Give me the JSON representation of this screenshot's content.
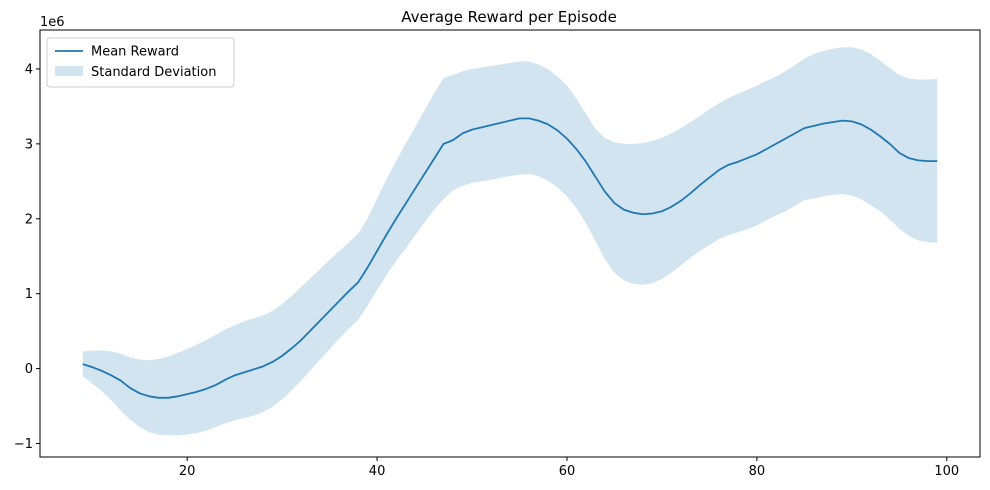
{
  "chart_data": {
    "type": "line",
    "title": "Average Reward per Episode",
    "xlabel": "",
    "ylabel": "",
    "y_offset_text": "1e6",
    "xlim": [
      4.5,
      103.5
    ],
    "ylim": [
      -1.18,
      4.52
    ],
    "x_ticks": [
      20,
      40,
      60,
      80,
      100
    ],
    "y_ticks": [
      -1,
      0,
      1,
      2,
      3,
      4
    ],
    "legend_position": "top-left",
    "grid": false,
    "colors": {
      "line": "#1f77b4",
      "band": "#1f77b4"
    },
    "series": [
      {
        "name": "Mean Reward",
        "kind": "line",
        "x": [
          9,
          10,
          11,
          12,
          13,
          14,
          15,
          16,
          17,
          18,
          19,
          20,
          21,
          22,
          23,
          24,
          25,
          26,
          27,
          28,
          29,
          30,
          31,
          32,
          33,
          34,
          35,
          36,
          37,
          38,
          39,
          40,
          41,
          42,
          43,
          44,
          45,
          46,
          47,
          48,
          49,
          50,
          51,
          52,
          53,
          54,
          55,
          56,
          57,
          58,
          59,
          60,
          61,
          62,
          63,
          64,
          65,
          66,
          67,
          68,
          69,
          70,
          71,
          72,
          73,
          74,
          75,
          76,
          77,
          78,
          79,
          80,
          81,
          82,
          83,
          84,
          85,
          86,
          87,
          88,
          89,
          90,
          91,
          92,
          93,
          94,
          95,
          96,
          97,
          98,
          99
        ],
        "y": [
          0.06,
          0.02,
          -0.03,
          -0.09,
          -0.16,
          -0.26,
          -0.33,
          -0.37,
          -0.39,
          -0.39,
          -0.37,
          -0.34,
          -0.31,
          -0.27,
          -0.22,
          -0.15,
          -0.09,
          -0.05,
          -0.01,
          0.03,
          0.09,
          0.17,
          0.27,
          0.38,
          0.51,
          0.64,
          0.77,
          0.9,
          1.03,
          1.15,
          1.35,
          1.57,
          1.79,
          2.0,
          2.2,
          2.4,
          2.6,
          2.8,
          3.0,
          3.05,
          3.14,
          3.19,
          3.22,
          3.25,
          3.28,
          3.31,
          3.34,
          3.34,
          3.31,
          3.26,
          3.18,
          3.07,
          2.93,
          2.76,
          2.56,
          2.36,
          2.21,
          2.12,
          2.08,
          2.06,
          2.07,
          2.1,
          2.16,
          2.24,
          2.34,
          2.45,
          2.55,
          2.65,
          2.72,
          2.76,
          2.81,
          2.86,
          2.93,
          3.0,
          3.07,
          3.14,
          3.21,
          3.24,
          3.27,
          3.29,
          3.31,
          3.3,
          3.26,
          3.19,
          3.1,
          3.0,
          2.88,
          2.81,
          2.78,
          2.77,
          2.77
        ]
      },
      {
        "name": "Standard Deviation",
        "kind": "band",
        "x": [
          9,
          10,
          11,
          12,
          13,
          14,
          15,
          16,
          17,
          18,
          19,
          20,
          21,
          22,
          23,
          24,
          25,
          26,
          27,
          28,
          29,
          30,
          31,
          32,
          33,
          34,
          35,
          36,
          37,
          38,
          39,
          40,
          41,
          42,
          43,
          44,
          45,
          46,
          47,
          48,
          49,
          50,
          51,
          52,
          53,
          54,
          55,
          56,
          57,
          58,
          59,
          60,
          61,
          62,
          63,
          64,
          65,
          66,
          67,
          68,
          69,
          70,
          71,
          72,
          73,
          74,
          75,
          76,
          77,
          78,
          79,
          80,
          81,
          82,
          83,
          84,
          85,
          86,
          87,
          88,
          89,
          90,
          91,
          92,
          93,
          94,
          95,
          96,
          97,
          98,
          99
        ],
        "lower": [
          -0.1,
          -0.2,
          -0.3,
          -0.42,
          -0.56,
          -0.68,
          -0.78,
          -0.85,
          -0.88,
          -0.89,
          -0.89,
          -0.88,
          -0.86,
          -0.83,
          -0.78,
          -0.73,
          -0.69,
          -0.66,
          -0.63,
          -0.58,
          -0.51,
          -0.41,
          -0.29,
          -0.16,
          -0.02,
          0.12,
          0.26,
          0.4,
          0.53,
          0.65,
          0.84,
          1.05,
          1.25,
          1.44,
          1.6,
          1.78,
          1.95,
          2.12,
          2.26,
          2.38,
          2.44,
          2.48,
          2.5,
          2.52,
          2.55,
          2.57,
          2.59,
          2.6,
          2.57,
          2.51,
          2.42,
          2.3,
          2.14,
          1.94,
          1.7,
          1.46,
          1.28,
          1.18,
          1.13,
          1.12,
          1.14,
          1.2,
          1.28,
          1.38,
          1.48,
          1.57,
          1.65,
          1.73,
          1.78,
          1.82,
          1.86,
          1.91,
          1.98,
          2.04,
          2.1,
          2.17,
          2.25,
          2.27,
          2.3,
          2.32,
          2.33,
          2.31,
          2.26,
          2.18,
          2.1,
          1.99,
          1.87,
          1.77,
          1.71,
          1.69,
          1.68
        ],
        "upper": [
          0.23,
          0.24,
          0.24,
          0.23,
          0.2,
          0.15,
          0.12,
          0.11,
          0.13,
          0.16,
          0.21,
          0.26,
          0.32,
          0.38,
          0.45,
          0.52,
          0.58,
          0.63,
          0.67,
          0.71,
          0.77,
          0.86,
          0.97,
          1.09,
          1.21,
          1.33,
          1.45,
          1.57,
          1.68,
          1.8,
          2.0,
          2.27,
          2.53,
          2.77,
          3.0,
          3.22,
          3.45,
          3.67,
          3.88,
          3.92,
          3.97,
          4.0,
          4.02,
          4.04,
          4.06,
          4.08,
          4.1,
          4.1,
          4.06,
          4.0,
          3.9,
          3.78,
          3.6,
          3.4,
          3.2,
          3.08,
          3.02,
          3.0,
          3.0,
          3.01,
          3.04,
          3.08,
          3.14,
          3.21,
          3.29,
          3.37,
          3.46,
          3.54,
          3.61,
          3.67,
          3.72,
          3.78,
          3.84,
          3.9,
          3.97,
          4.05,
          4.14,
          4.2,
          4.24,
          4.27,
          4.29,
          4.29,
          4.26,
          4.2,
          4.11,
          4.01,
          3.92,
          3.87,
          3.86,
          3.86,
          3.87
        ]
      }
    ]
  }
}
